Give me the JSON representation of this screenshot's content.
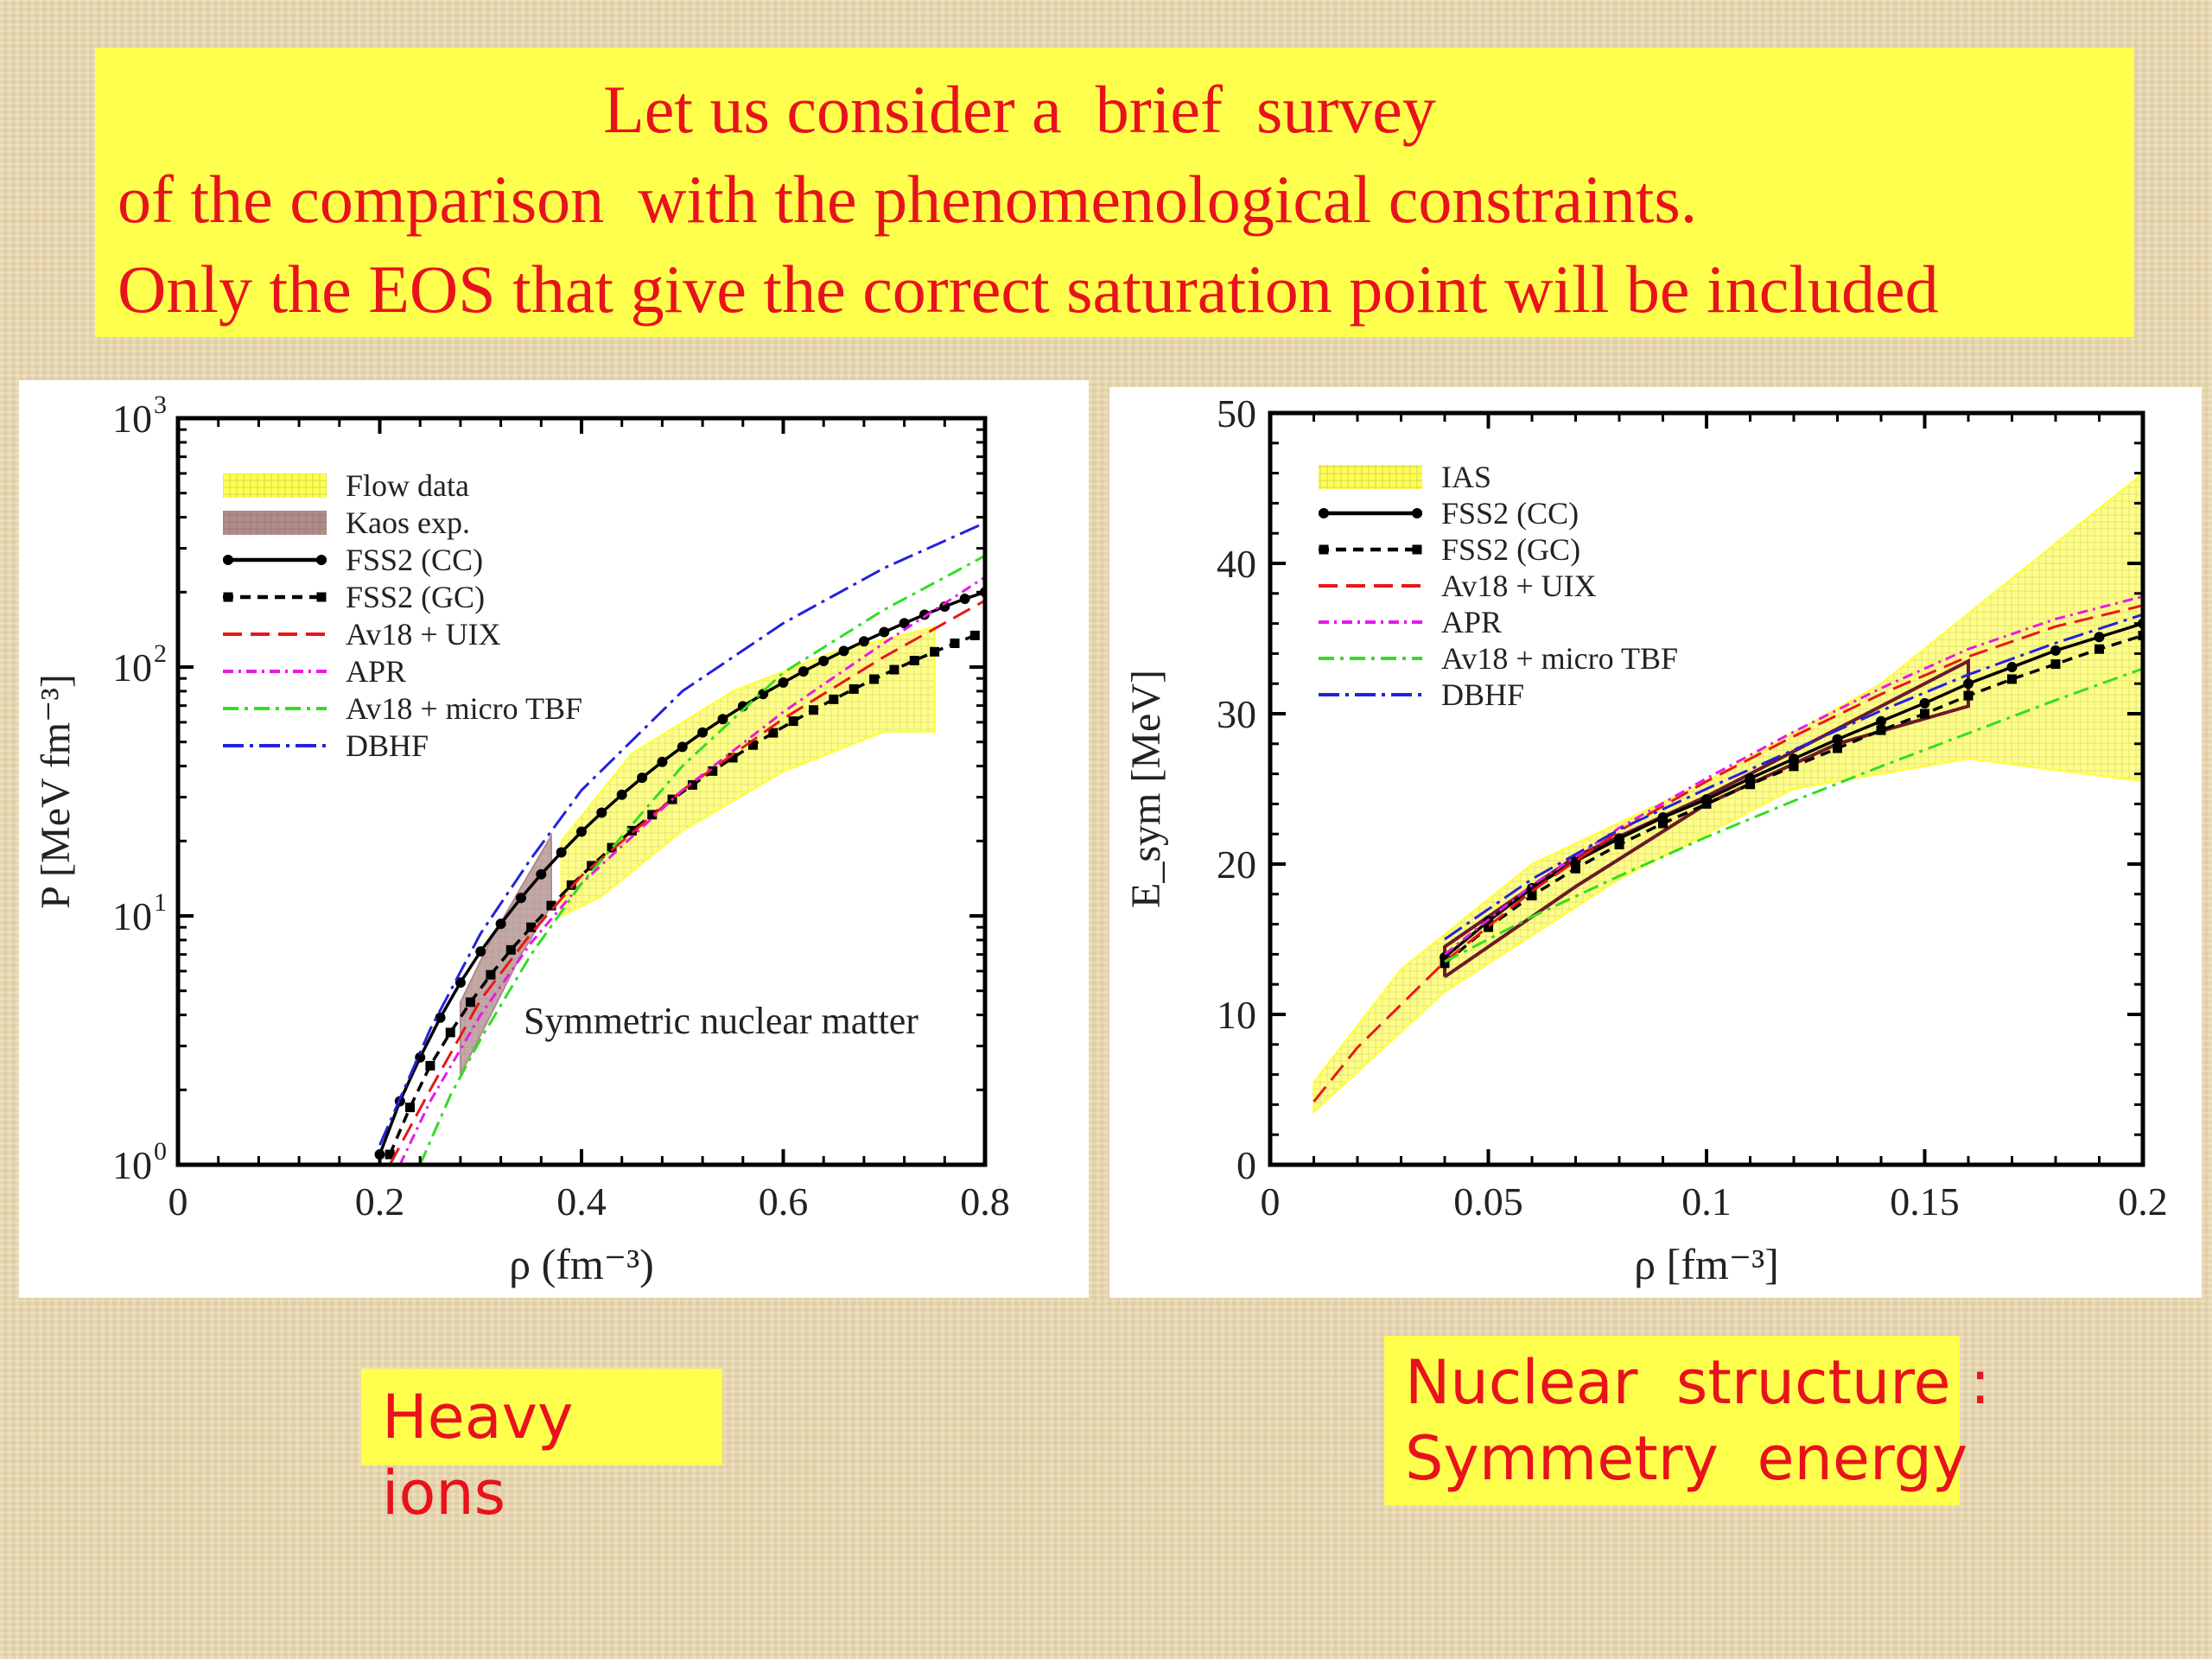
{
  "title": {
    "line1": "Let us consider a  brief  survey",
    "line2": "of the comparison  with the phenomenological constraints.",
    "line3": "Only the EOS that give the correct saturation point will be included"
  },
  "captions": {
    "left": "Heavy  ions",
    "right_line1": "Nuclear  structure :",
    "right_line2": "Symmetry  energy"
  },
  "chart_data": [
    {
      "type": "line",
      "annotation": "Symmetric nuclear matter",
      "xlabel": "ρ (fm⁻³)",
      "ylabel": "P [MeV fm⁻³]",
      "xlim": [
        0,
        0.8
      ],
      "ylim": [
        1,
        1000
      ],
      "yscale": "log",
      "xticks": [
        {
          "v": 0,
          "label": "0"
        },
        {
          "v": 0.2,
          "label": "0.2"
        },
        {
          "v": 0.4,
          "label": "0.4"
        },
        {
          "v": 0.6,
          "label": "0.6"
        },
        {
          "v": 0.8,
          "label": "0.8"
        }
      ],
      "yticks": [
        {
          "v": 1,
          "base": "10",
          "exp": "0"
        },
        {
          "v": 10,
          "base": "10",
          "exp": "1"
        },
        {
          "v": 100,
          "base": "10",
          "exp": "2"
        },
        {
          "v": 1000,
          "base": "10",
          "exp": "3"
        }
      ],
      "legend_position": "top-left",
      "bands": [
        {
          "name": "Flow data",
          "color": "#ffff33",
          "opacity": 0.6,
          "hatch": true,
          "upper": [
            [
              0.38,
              20
            ],
            [
              0.45,
              45
            ],
            [
              0.55,
              80
            ],
            [
              0.65,
              115
            ],
            [
              0.75,
              145
            ]
          ],
          "lower": [
            [
              0.75,
              55
            ],
            [
              0.7,
              55
            ],
            [
              0.6,
              38
            ],
            [
              0.5,
              22
            ],
            [
              0.42,
              12
            ],
            [
              0.38,
              10
            ]
          ]
        },
        {
          "name": "Kaos exp.",
          "color": "#b08a8e",
          "opacity": 0.75,
          "hatch": true,
          "upper": [
            [
              0.28,
              4.5
            ],
            [
              0.31,
              8
            ],
            [
              0.34,
              13
            ],
            [
              0.37,
              21
            ]
          ],
          "lower": [
            [
              0.37,
              11
            ],
            [
              0.34,
              7
            ],
            [
              0.31,
              4
            ],
            [
              0.28,
              2.3
            ]
          ]
        }
      ],
      "series": [
        {
          "name": "FSS2 (CC)",
          "color": "#000000",
          "dash": "",
          "width": 3.5,
          "marker": "circle",
          "x": [
            0.2,
            0.22,
            0.24,
            0.26,
            0.28,
            0.3,
            0.32,
            0.34,
            0.36,
            0.38,
            0.4,
            0.42,
            0.44,
            0.46,
            0.48,
            0.5,
            0.52,
            0.54,
            0.56,
            0.58,
            0.6,
            0.62,
            0.64,
            0.66,
            0.68,
            0.7,
            0.72,
            0.74,
            0.76,
            0.78,
            0.8
          ],
          "y": [
            1.1,
            1.8,
            2.7,
            3.9,
            5.4,
            7.2,
            9.3,
            11.8,
            14.7,
            18.0,
            21.8,
            26.0,
            30.7,
            35.9,
            41.6,
            47.8,
            54.6,
            61.8,
            69.6,
            77.9,
            86.7,
            96.0,
            105.8,
            116.1,
            126.9,
            138.2,
            150.0,
            162.3,
            175.0,
            188.0,
            200.0
          ]
        },
        {
          "name": "FSS2 (GC)",
          "color": "#000000",
          "dash": "12,8",
          "width": 3.5,
          "marker": "square",
          "x": [
            0.21,
            0.23,
            0.25,
            0.27,
            0.29,
            0.31,
            0.33,
            0.35,
            0.37,
            0.39,
            0.41,
            0.43,
            0.45,
            0.47,
            0.49,
            0.51,
            0.53,
            0.55,
            0.57,
            0.59,
            0.61,
            0.63,
            0.65,
            0.67,
            0.69,
            0.71,
            0.73,
            0.75,
            0.77,
            0.79
          ],
          "y": [
            1.1,
            1.7,
            2.5,
            3.4,
            4.5,
            5.8,
            7.3,
            9.0,
            11.0,
            13.3,
            15.9,
            18.8,
            22.0,
            25.5,
            29.4,
            33.6,
            38.2,
            43.2,
            48.6,
            54.4,
            60.6,
            67.2,
            74.2,
            81.6,
            89.4,
            97.6,
            106.2,
            115.2,
            124.6,
            134.0
          ]
        },
        {
          "name": "Av18 + UIX",
          "color": "#e81818",
          "dash": "22,10",
          "width": 3,
          "x": [
            0.21,
            0.25,
            0.3,
            0.35,
            0.4,
            0.5,
            0.6,
            0.7,
            0.8
          ],
          "y": [
            1.0,
            2.0,
            4.6,
            8.5,
            14.5,
            32,
            62,
            110,
            185
          ]
        },
        {
          "name": "APR",
          "color": "#e818e8",
          "dash": "12,6,3,6",
          "width": 3,
          "x": [
            0.22,
            0.25,
            0.3,
            0.35,
            0.4,
            0.5,
            0.6,
            0.7,
            0.8
          ],
          "y": [
            1.0,
            1.8,
            4.0,
            7.8,
            13.5,
            32,
            66,
            125,
            230
          ]
        },
        {
          "name": "Av18 + micro TBF",
          "color": "#33dd22",
          "dash": "18,7,4,7",
          "width": 3,
          "x": [
            0.24,
            0.27,
            0.3,
            0.35,
            0.4,
            0.5,
            0.6,
            0.7,
            0.8
          ],
          "y": [
            1.0,
            1.9,
            3.2,
            7.0,
            13.5,
            40,
            95,
            170,
            280
          ]
        },
        {
          "name": "DBHF",
          "color": "#2222dd",
          "dash": "24,7,4,7",
          "width": 3,
          "x": [
            0.2,
            0.25,
            0.3,
            0.35,
            0.4,
            0.5,
            0.6,
            0.7,
            0.8
          ],
          "y": [
            1.2,
            3.5,
            8.5,
            17,
            32,
            80,
            150,
            250,
            380
          ]
        }
      ]
    },
    {
      "type": "line",
      "xlabel": "ρ [fm⁻³]",
      "ylabel": "E_sym [MeV]",
      "xlim": [
        0,
        0.2
      ],
      "ylim": [
        0,
        50
      ],
      "xticks": [
        {
          "v": 0,
          "label": "0"
        },
        {
          "v": 0.05,
          "label": "0.05"
        },
        {
          "v": 0.1,
          "label": "0.1"
        },
        {
          "v": 0.15,
          "label": "0.15"
        },
        {
          "v": 0.2,
          "label": "0.2"
        }
      ],
      "yticks": [
        {
          "v": 0,
          "label": "0"
        },
        {
          "v": 10,
          "label": "10"
        },
        {
          "v": 20,
          "label": "20"
        },
        {
          "v": 30,
          "label": "30"
        },
        {
          "v": 40,
          "label": "40"
        },
        {
          "v": 50,
          "label": "50"
        }
      ],
      "legend_position": "top-left",
      "bands": [
        {
          "name": "IAS",
          "color": "#ffff33",
          "opacity": 0.6,
          "hatch": true,
          "upper": [
            [
              0.01,
              5.5
            ],
            [
              0.03,
              13
            ],
            [
              0.06,
              20
            ],
            [
              0.1,
              25.5
            ],
            [
              0.14,
              32
            ],
            [
              0.2,
              46
            ]
          ],
          "lower": [
            [
              0.2,
              25.5
            ],
            [
              0.16,
              27
            ],
            [
              0.12,
              25
            ],
            [
              0.08,
              19
            ],
            [
              0.04,
              11.5
            ],
            [
              0.01,
              3.5
            ]
          ]
        }
      ],
      "box": {
        "color": "#6b1a2a",
        "points": [
          [
            0.04,
            12.5
          ],
          [
            0.04,
            14.5
          ],
          [
            0.07,
            20.5
          ],
          [
            0.1,
            24.5
          ],
          [
            0.16,
            33.5
          ],
          [
            0.16,
            30.5
          ],
          [
            0.13,
            28
          ],
          [
            0.1,
            24
          ],
          [
            0.07,
            18.5
          ],
          [
            0.04,
            12.5
          ]
        ]
      },
      "series": [
        {
          "name": "FSS2 (CC)",
          "color": "#000000",
          "dash": "",
          "width": 3.5,
          "marker": "circle",
          "x": [
            0.04,
            0.05,
            0.06,
            0.07,
            0.08,
            0.09,
            0.1,
            0.11,
            0.12,
            0.13,
            0.14,
            0.15,
            0.16,
            0.17,
            0.18,
            0.19,
            0.2
          ],
          "y": [
            13.8,
            16.2,
            18.4,
            20.2,
            21.7,
            23.1,
            24.3,
            25.7,
            27.0,
            28.3,
            29.5,
            30.7,
            32.0,
            33.1,
            34.2,
            35.1,
            36.0
          ]
        },
        {
          "name": "FSS2 (GC)",
          "color": "#000000",
          "dash": "12,8",
          "width": 3.5,
          "marker": "square",
          "x": [
            0.04,
            0.05,
            0.06,
            0.07,
            0.08,
            0.09,
            0.1,
            0.11,
            0.12,
            0.13,
            0.14,
            0.15,
            0.16,
            0.17,
            0.18,
            0.19,
            0.2
          ],
          "y": [
            13.4,
            15.8,
            17.9,
            19.7,
            21.3,
            22.7,
            24.0,
            25.3,
            26.5,
            27.7,
            28.9,
            30.0,
            31.2,
            32.3,
            33.3,
            34.3,
            35.2
          ]
        },
        {
          "name": "Av18 + UIX",
          "color": "#e81818",
          "dash": "22,10",
          "width": 3,
          "x": [
            0.01,
            0.02,
            0.04,
            0.06,
            0.08,
            0.1,
            0.12,
            0.14,
            0.16,
            0.18,
            0.2
          ],
          "y": [
            4.2,
            7.8,
            13.5,
            18.2,
            22.2,
            25.5,
            28.5,
            31.3,
            33.8,
            35.8,
            37.2
          ]
        },
        {
          "name": "APR",
          "color": "#e818e8",
          "dash": "12,6,3,6",
          "width": 3,
          "x": [
            0.04,
            0.06,
            0.08,
            0.1,
            0.12,
            0.14,
            0.16,
            0.18,
            0.2
          ],
          "y": [
            14,
            18.6,
            22.4,
            25.7,
            28.8,
            31.7,
            34.3,
            36.3,
            37.8
          ]
        },
        {
          "name": "Av18 + micro TBF",
          "color": "#33dd22",
          "dash": "18,7,4,7",
          "width": 3,
          "x": [
            0.04,
            0.06,
            0.08,
            0.1,
            0.12,
            0.14,
            0.16,
            0.18,
            0.2
          ],
          "y": [
            13.5,
            16.5,
            19.2,
            21.8,
            24.2,
            26.5,
            28.7,
            30.9,
            33.0
          ]
        },
        {
          "name": "DBHF",
          "color": "#2222dd",
          "dash": "24,7,4,7",
          "width": 3,
          "x": [
            0.04,
            0.06,
            0.08,
            0.1,
            0.12,
            0.14,
            0.16,
            0.18,
            0.2
          ],
          "y": [
            15,
            19,
            22.3,
            25.0,
            27.6,
            30.2,
            32.6,
            34.7,
            36.6
          ]
        }
      ]
    }
  ]
}
